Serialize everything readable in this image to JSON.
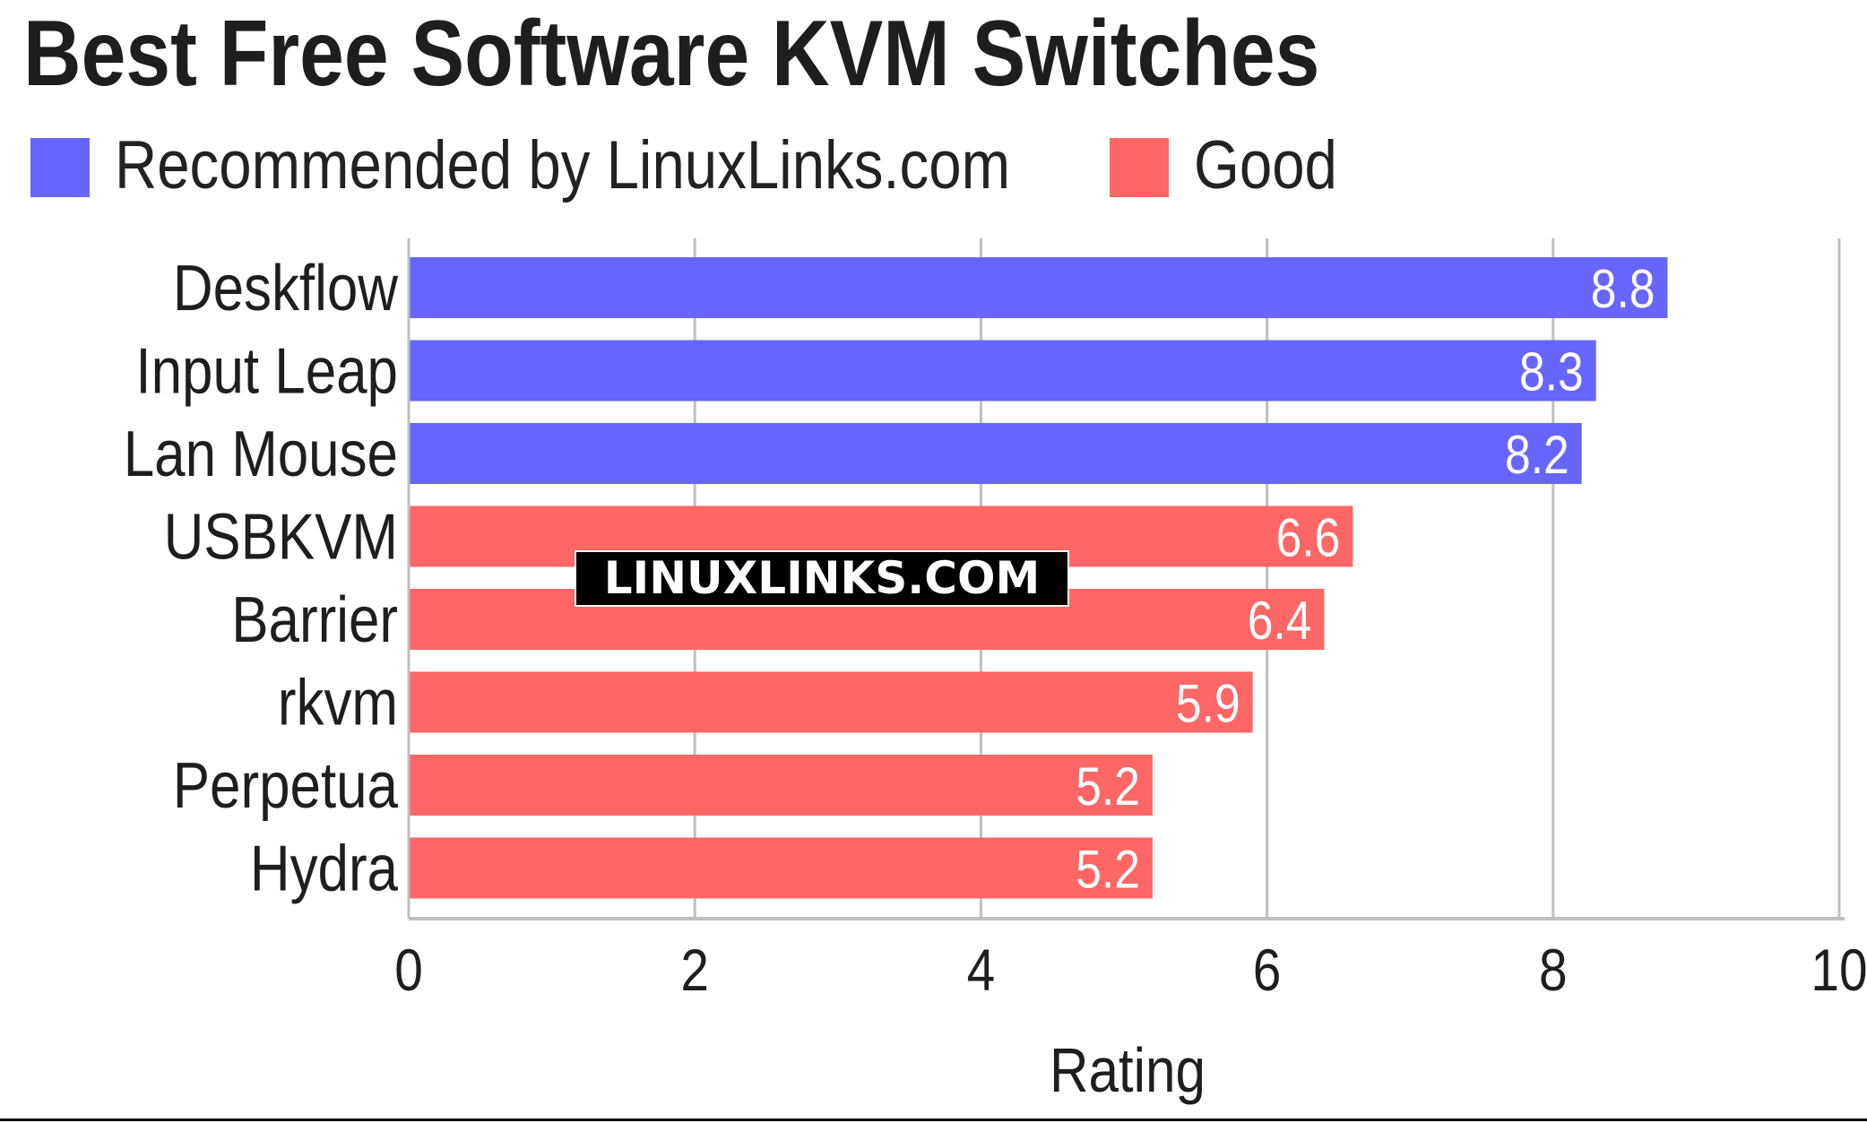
{
  "chart_data": {
    "type": "bar",
    "orientation": "horizontal",
    "title": "Best Free Software KVM Switches",
    "xlabel": "Rating",
    "ylabel": "",
    "xlim": [
      0,
      10
    ],
    "xticks": [
      "0",
      "2",
      "4",
      "6",
      "8",
      "10"
    ],
    "grid": "vertical",
    "legend_placement": "top-left",
    "categories": [
      "Deskflow",
      "Input Leap",
      "Lan Mouse",
      "USBKVM",
      "Barrier",
      "rkvm",
      "Perpetua",
      "Hydra"
    ],
    "values": [
      8.8,
      8.3,
      8.2,
      6.6,
      6.4,
      5.9,
      5.2,
      5.2
    ],
    "value_labels": [
      "8.8",
      "8.3",
      "8.2",
      "6.6",
      "6.4",
      "5.9",
      "5.2",
      "5.2"
    ],
    "groups": [
      "Recommended by LinuxLinks.com",
      "Recommended by LinuxLinks.com",
      "Recommended by LinuxLinks.com",
      "Good",
      "Good",
      "Good",
      "Good",
      "Good"
    ],
    "legend": [
      {
        "name": "Recommended by LinuxLinks.com",
        "color": "#6666ff"
      },
      {
        "name": "Good",
        "color": "#ff6666"
      }
    ]
  },
  "watermark": "LINUXLINKS.COM",
  "colors": {
    "recommended": "#6666ff",
    "good": "#ff6666",
    "grid": "#bfbfbf",
    "text": "#222222"
  }
}
